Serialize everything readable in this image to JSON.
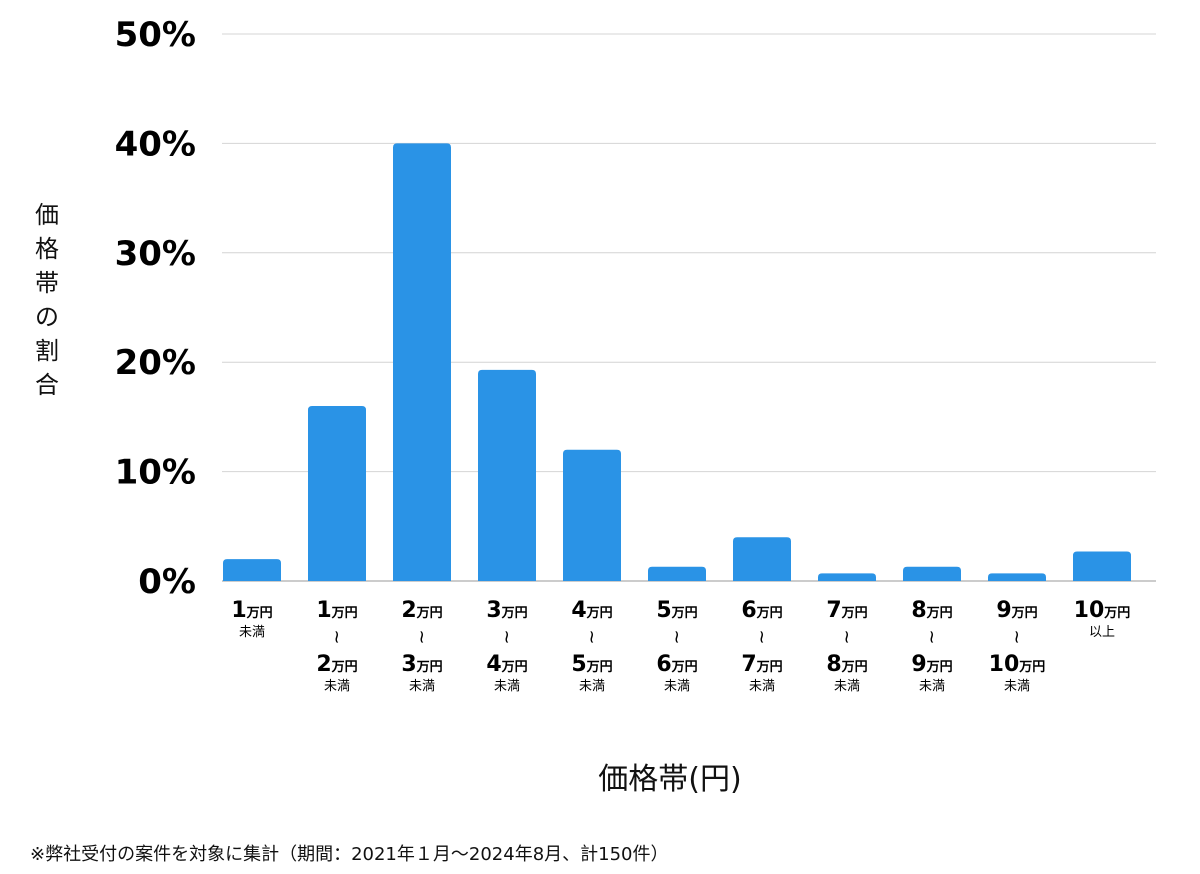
{
  "chart_data": {
    "type": "bar",
    "title": "",
    "ylabel": "価格帯の割合",
    "xlabel": "価格帯(円)",
    "ylim": [
      0,
      50
    ],
    "yticks": [
      {
        "value": 0,
        "label": "0%"
      },
      {
        "value": 10,
        "label": "10%"
      },
      {
        "value": 20,
        "label": "20%"
      },
      {
        "value": 30,
        "label": "30%"
      },
      {
        "value": 40,
        "label": "40%"
      },
      {
        "value": 50,
        "label": "50%"
      }
    ],
    "bar_color": "#2a93e6",
    "categories": [
      {
        "from_num": "1",
        "to_num": "",
        "unit": "万円",
        "suffix": "未満"
      },
      {
        "from_num": "1",
        "to_num": "2",
        "unit": "万円",
        "suffix": "未満"
      },
      {
        "from_num": "2",
        "to_num": "3",
        "unit": "万円",
        "suffix": "未満"
      },
      {
        "from_num": "3",
        "to_num": "4",
        "unit": "万円",
        "suffix": "未満"
      },
      {
        "from_num": "4",
        "to_num": "5",
        "unit": "万円",
        "suffix": "未満"
      },
      {
        "from_num": "5",
        "to_num": "6",
        "unit": "万円",
        "suffix": "未満"
      },
      {
        "from_num": "6",
        "to_num": "7",
        "unit": "万円",
        "suffix": "未満"
      },
      {
        "from_num": "7",
        "to_num": "8",
        "unit": "万円",
        "suffix": "未満"
      },
      {
        "from_num": "8",
        "to_num": "9",
        "unit": "万円",
        "suffix": "未満"
      },
      {
        "from_num": "9",
        "to_num": "10",
        "unit": "万円",
        "suffix": "未満"
      },
      {
        "from_num": "10",
        "to_num": "",
        "unit": "万円",
        "suffix": "以上"
      }
    ],
    "range_separator": "~",
    "values": [
      2.0,
      16.0,
      40.0,
      19.3,
      12.0,
      1.3,
      4.0,
      0.7,
      1.3,
      0.7,
      2.7
    ]
  },
  "y_title_chars": [
    "価",
    "格",
    "帯",
    "の",
    "割",
    "合"
  ],
  "footnote": "※弊社受付の案件を対象に集計（期間：2021年１月～2024年8月、計150件）"
}
